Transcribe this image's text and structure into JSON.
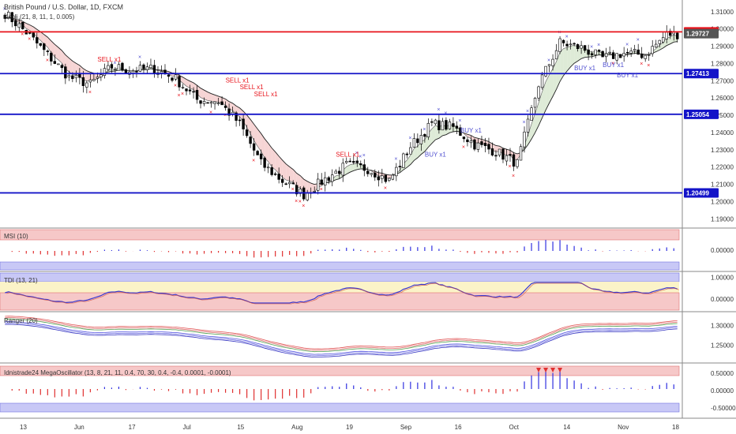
{
  "header": {
    "symbol_title": "British Pound / U.S. Dollar, 1D, FXCM",
    "indicator_title": "Kenji (21, 8, 11, 1, 0.005)"
  },
  "colors": {
    "up_candle": "#ffffff",
    "down_candle": "#000000",
    "resistance": "#e8141c",
    "support": "#1414c8",
    "sell_signal": "#e8141c",
    "buy_signal": "#5050d0",
    "bear_cloud": "#f4cccc",
    "bull_cloud": "#d8e8d0",
    "msi_pos": "#3030e0",
    "msi_neg": "#e03030"
  },
  "chart_data": [
    {
      "type": "candlestick",
      "panel": "price",
      "x_ticks": [
        "13",
        "Jun",
        "17",
        "Jul",
        "15",
        "Aug",
        "19",
        "Sep",
        "16",
        "Oct",
        "14",
        "Nov",
        "18"
      ],
      "y_ticks": [
        1.31,
        1.3,
        1.29,
        1.28,
        1.27,
        1.26,
        1.25,
        1.24,
        1.23,
        1.22,
        1.21,
        1.2,
        1.19
      ],
      "ylim": [
        1.186,
        1.314
      ],
      "price_tags": [
        {
          "value": 1.29828,
          "label": "1.29828",
          "color": "#e8141c"
        },
        {
          "value": 1.29727,
          "label": "1.29727",
          "color": "#555555"
        },
        {
          "value": 1.27413,
          "label": "1.27413",
          "color": "#1414c8"
        },
        {
          "value": 1.25054,
          "label": "1.25054",
          "color": "#1414c8"
        },
        {
          "value": 1.20499,
          "label": "1.20499",
          "color": "#1414c8"
        }
      ],
      "horizontal_lines": [
        {
          "value": 1.29828,
          "color": "#e8141c"
        },
        {
          "value": 1.27413,
          "color": "#1414c8"
        },
        {
          "value": 1.25054,
          "color": "#1414c8"
        },
        {
          "value": 1.20499,
          "color": "#1414c8"
        }
      ],
      "close_anchors": [
        [
          0,
          1.309
        ],
        [
          6,
          1.298
        ],
        [
          12,
          1.285
        ],
        [
          18,
          1.272
        ],
        [
          24,
          1.268
        ],
        [
          30,
          1.278
        ],
        [
          36,
          1.276
        ],
        [
          42,
          1.277
        ],
        [
          48,
          1.271
        ],
        [
          54,
          1.259
        ],
        [
          60,
          1.258
        ],
        [
          66,
          1.245
        ],
        [
          72,
          1.222
        ],
        [
          78,
          1.212
        ],
        [
          84,
          1.204
        ],
        [
          90,
          1.213
        ],
        [
          96,
          1.221
        ],
        [
          102,
          1.219
        ],
        [
          108,
          1.212
        ],
        [
          114,
          1.232
        ],
        [
          120,
          1.245
        ],
        [
          126,
          1.243
        ],
        [
          132,
          1.233
        ],
        [
          138,
          1.229
        ],
        [
          144,
          1.222
        ],
        [
          150,
          1.268
        ],
        [
          156,
          1.292
        ],
        [
          162,
          1.289
        ],
        [
          168,
          1.283
        ],
        [
          174,
          1.286
        ],
        [
          180,
          1.285
        ],
        [
          186,
          1.297
        ]
      ],
      "signals": [
        {
          "text": "SELL x1",
          "index": 26,
          "value": 1.281
        },
        {
          "text": "SELL x1",
          "index": 62,
          "value": 1.269
        },
        {
          "text": "SELL x1",
          "index": 70,
          "value": 1.261
        },
        {
          "text": "SELL x1",
          "index": 66,
          "value": 1.265
        },
        {
          "text": "SELL x1",
          "index": 93,
          "value": 1.226
        },
        {
          "text": "BUY x1",
          "index": 118,
          "value": 1.226
        },
        {
          "text": "BUY x1",
          "index": 128,
          "value": 1.24
        },
        {
          "text": "BUY x1",
          "index": 160,
          "value": 1.276
        },
        {
          "text": "BUY x1",
          "index": 168,
          "value": 1.278
        },
        {
          "text": "BUY x1",
          "index": 172,
          "value": 1.272
        }
      ]
    },
    {
      "type": "bar",
      "panel": "MSI",
      "title": "MSI (10)",
      "y_ticks": [
        0.0
      ],
      "ylim": [
        -1,
        1
      ]
    },
    {
      "type": "line",
      "panel": "TDI",
      "title": "TDI (13, 21)",
      "y_ticks": [
        1.0,
        0.0
      ],
      "ylim": [
        -0.5,
        1.2
      ]
    },
    {
      "type": "line",
      "panel": "Ranger",
      "title": "Ranger (20)",
      "y_ticks": [
        1.3,
        1.25
      ],
      "ylim": [
        1.21,
        1.33
      ]
    },
    {
      "type": "bar",
      "panel": "MegaOscillator",
      "title": "Idnistrade24 MegaOscillator (13, 8, 21, 11, 0.4, 70, 30, 0.4, -0.4, 0.0001, -0.0001)",
      "y_ticks": [
        0.5,
        0.0,
        -0.5
      ],
      "ylim": [
        -0.75,
        0.75
      ]
    }
  ]
}
